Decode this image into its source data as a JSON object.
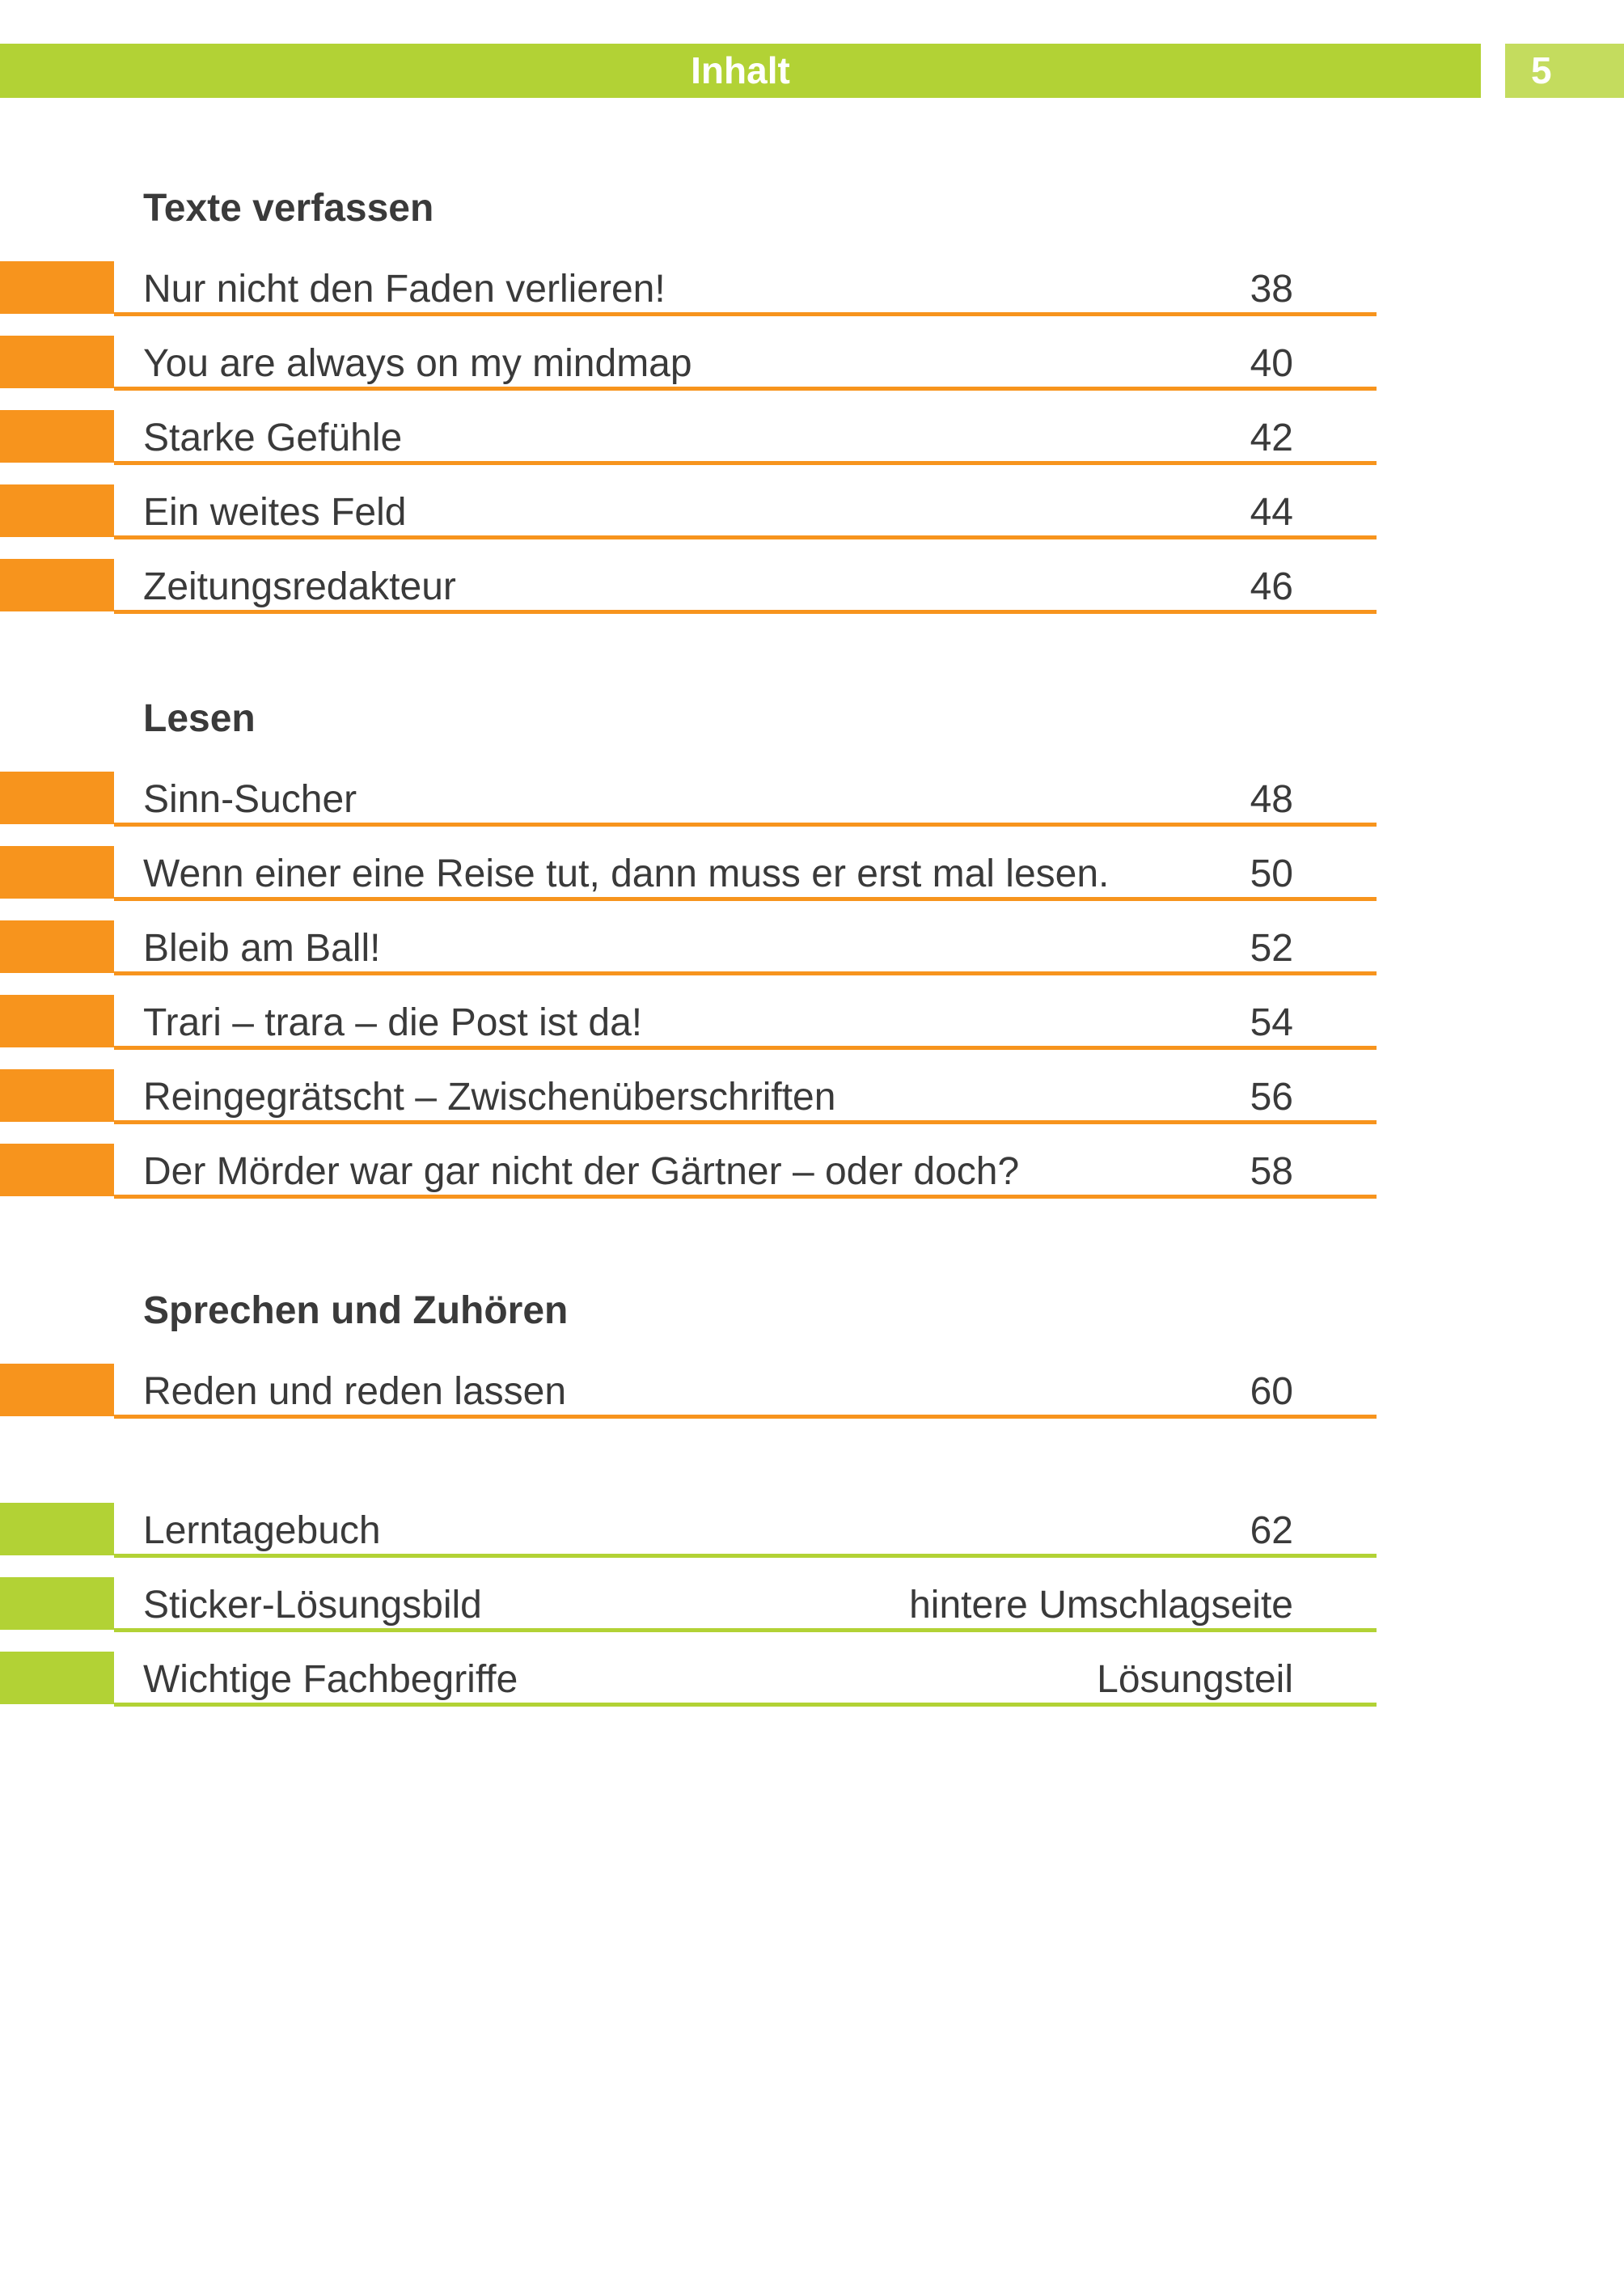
{
  "header": {
    "title": "Inhalt",
    "page_number": "5",
    "colors": {
      "green": "#b2d235",
      "orange": "#f7941d"
    }
  },
  "sections": [
    {
      "title": "Texte verfassen",
      "items": [
        {
          "label": "Nur nicht den Faden verlieren!",
          "page": "38"
        },
        {
          "label": "You are always on my mindmap",
          "page": "40"
        },
        {
          "label": "Starke Gefühle",
          "page": "42"
        },
        {
          "label": "Ein weites Feld",
          "page": "44"
        },
        {
          "label": "Zeitungsredakteur",
          "page": "46"
        }
      ]
    },
    {
      "title": "Lesen",
      "items": [
        {
          "label": "Sinn-Sucher",
          "page": "48"
        },
        {
          "label": "Wenn einer eine Reise tut, dann muss er erst mal lesen.",
          "page": "50"
        },
        {
          "label": "Bleib am Ball!",
          "page": "52"
        },
        {
          "label": "Trari – trara – die Post ist da!",
          "page": "54"
        },
        {
          "label": "Reingegrätscht – Zwischenüberschriften",
          "page": "56"
        },
        {
          "label": "Der Mörder war gar nicht der Gärtner – oder doch?",
          "page": "58"
        }
      ]
    },
    {
      "title": "Sprechen und Zuhören",
      "items": [
        {
          "label": "Reden und reden lassen",
          "page": "60"
        }
      ]
    }
  ],
  "appendix": [
    {
      "label": "Lerntagebuch",
      "page": "62"
    },
    {
      "label": "Sticker-Lösungsbild",
      "page": "hintere Umschlagseite"
    },
    {
      "label": "Wichtige Fachbegriffe",
      "page": "Lösungsteil"
    }
  ]
}
